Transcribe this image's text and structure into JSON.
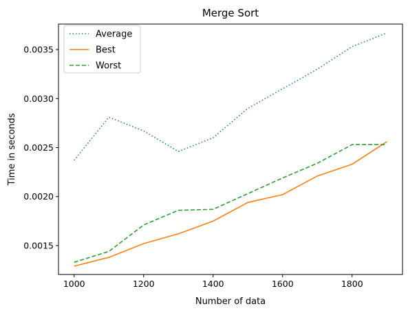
{
  "chart_data": {
    "type": "line",
    "title": "Merge Sort",
    "xlabel": "Number of data",
    "ylabel": "Time in seconds",
    "x": [
      1000,
      1100,
      1200,
      1300,
      1400,
      1500,
      1600,
      1700,
      1800,
      1900
    ],
    "xlim": [
      955,
      1945
    ],
    "ylim": [
      0.001205,
      0.00376
    ],
    "xticks": [
      1000,
      1200,
      1400,
      1600,
      1800
    ],
    "yticks": [
      0.0015,
      0.002,
      0.0025,
      0.003,
      0.0035
    ],
    "ytick_labels": [
      "0.0015",
      "0.0020",
      "0.0025",
      "0.0030",
      "0.0035"
    ],
    "grid": false,
    "legend_position": "top-left",
    "series": [
      {
        "name": "Average",
        "color": "#1f77b4",
        "style": "dotted",
        "values": [
          0.00237,
          0.00281,
          0.00267,
          0.00246,
          0.0026,
          0.0029,
          0.0031,
          0.0033,
          0.00353,
          0.00367
        ]
      },
      {
        "name": "Best",
        "color": "#ff7f0e",
        "style": "solid",
        "values": [
          0.00129,
          0.00138,
          0.00152,
          0.00162,
          0.00175,
          0.00194,
          0.00202,
          0.00221,
          0.00233,
          0.00256
        ]
      },
      {
        "name": "Worst",
        "color": "#2ca02c",
        "style": "dashed",
        "values": [
          0.00133,
          0.00144,
          0.00171,
          0.00186,
          0.00187,
          0.00203,
          0.00219,
          0.00234,
          0.00253,
          0.00253
        ]
      }
    ]
  }
}
